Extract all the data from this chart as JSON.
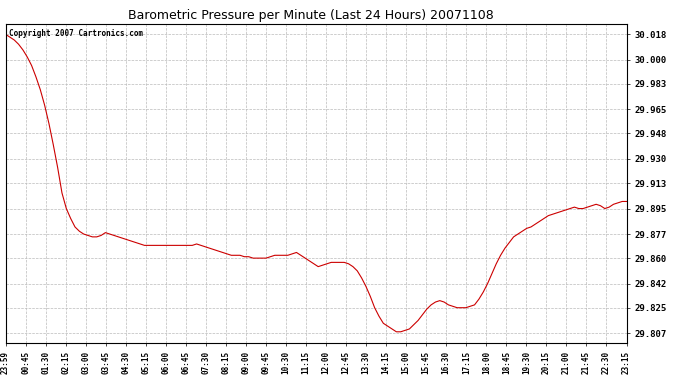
{
  "title": "Barometric Pressure per Minute (Last 24 Hours) 20071108",
  "copyright": "Copyright 2007 Cartronics.com",
  "line_color": "#cc0000",
  "background_color": "#ffffff",
  "plot_background": "#ffffff",
  "grid_color": "#bbbbbb",
  "y_ticks": [
    29.807,
    29.825,
    29.842,
    29.86,
    29.877,
    29.895,
    29.913,
    29.93,
    29.948,
    29.965,
    29.983,
    30.0,
    30.018
  ],
  "ylim": [
    29.8,
    30.025
  ],
  "x_labels": [
    "23:59",
    "00:45",
    "01:30",
    "02:15",
    "03:00",
    "03:45",
    "04:30",
    "05:15",
    "06:00",
    "06:45",
    "07:30",
    "08:15",
    "09:00",
    "09:45",
    "10:30",
    "11:15",
    "12:00",
    "12:45",
    "13:30",
    "14:15",
    "15:00",
    "15:45",
    "16:30",
    "17:15",
    "18:00",
    "18:45",
    "19:30",
    "20:15",
    "21:00",
    "21:45",
    "22:30",
    "23:15"
  ],
  "pressure_profile": [
    30.018,
    30.016,
    30.014,
    30.011,
    30.007,
    30.002,
    29.996,
    29.988,
    29.979,
    29.968,
    29.955,
    29.94,
    29.924,
    29.906,
    29.895,
    29.888,
    29.882,
    29.879,
    29.877,
    29.876,
    29.875,
    29.875,
    29.876,
    29.878,
    29.877,
    29.876,
    29.875,
    29.874,
    29.873,
    29.872,
    29.871,
    29.87,
    29.869,
    29.869,
    29.869,
    29.869,
    29.869,
    29.869,
    29.869,
    29.869,
    29.869,
    29.869,
    29.869,
    29.869,
    29.87,
    29.869,
    29.868,
    29.867,
    29.866,
    29.865,
    29.864,
    29.863,
    29.862,
    29.862,
    29.862,
    29.861,
    29.861,
    29.86,
    29.86,
    29.86,
    29.86,
    29.861,
    29.862,
    29.862,
    29.862,
    29.862,
    29.863,
    29.864,
    29.862,
    29.86,
    29.858,
    29.856,
    29.854,
    29.855,
    29.856,
    29.857,
    29.857,
    29.857,
    29.857,
    29.856,
    29.854,
    29.851,
    29.846,
    29.84,
    29.833,
    29.825,
    29.819,
    29.814,
    29.812,
    29.81,
    29.808,
    29.808,
    29.809,
    29.81,
    29.813,
    29.816,
    29.82,
    29.824,
    29.827,
    29.829,
    29.83,
    29.829,
    29.827,
    29.826,
    29.825,
    29.825,
    29.825,
    29.826,
    29.827,
    29.831,
    29.836,
    29.842,
    29.849,
    29.856,
    29.862,
    29.867,
    29.871,
    29.875,
    29.877,
    29.879,
    29.881,
    29.882,
    29.884,
    29.886,
    29.888,
    29.89,
    29.891,
    29.892,
    29.893,
    29.894,
    29.895,
    29.896,
    29.895,
    29.895,
    29.896,
    29.897,
    29.898,
    29.897,
    29.895,
    29.896,
    29.898,
    29.899,
    29.9,
    29.9
  ]
}
